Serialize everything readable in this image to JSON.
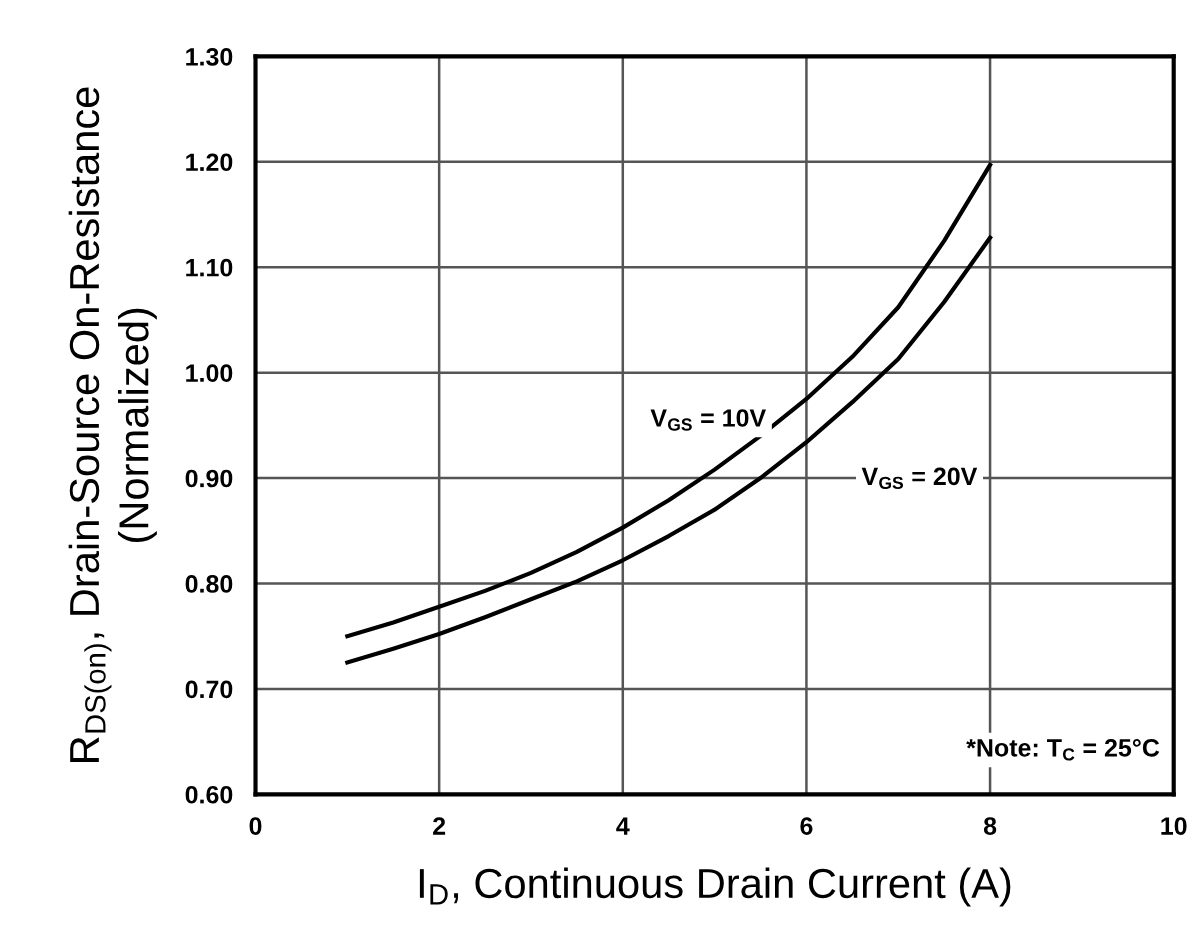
{
  "chart_data": {
    "type": "line",
    "xlabel": "I$_{D}$, Continuous Drain Current (A)",
    "ylabel": "R$_{DS(on)}$, Drain-Source On-Resistance\n(Normalized)",
    "x": [
      1,
      1.5,
      2,
      2.5,
      3,
      3.5,
      4,
      4.5,
      5,
      5.5,
      6,
      6.5,
      7,
      7.5,
      8
    ],
    "series": [
      {
        "color": "#000000",
        "values": [
          0.75,
          0.763,
          0.778,
          0.793,
          0.81,
          0.83,
          0.853,
          0.879,
          0.908,
          0.94,
          0.975,
          1.015,
          1.062,
          1.125,
          1.197
        ]
      },
      {
        "color": "#000000",
        "values": [
          0.725,
          0.738,
          0.752,
          0.768,
          0.785,
          0.802,
          0.822,
          0.845,
          0.87,
          0.9,
          0.934,
          0.972,
          1.013,
          1.067,
          1.128
        ]
      }
    ],
    "annotations": [
      "V$_{GS}$ = 10V",
      "V$_{GS}$ = 20V",
      "*Note: T$_{C}$ = 25°C"
    ],
    "xlim": [
      0,
      10
    ],
    "xticks": [
      0,
      2,
      4,
      6,
      8,
      10
    ],
    "ylim": [
      0.6,
      1.3
    ],
    "yticks": [
      {
        "value": 0.6,
        "label": "0.60"
      },
      {
        "value": 0.7,
        "label": "0.70"
      },
      {
        "value": 0.8,
        "label": "0.80"
      },
      {
        "value": 0.9,
        "label": "0.90"
      },
      {
        "value": 1.0,
        "label": "1.00"
      },
      {
        "value": 1.1,
        "label": "1.10"
      },
      {
        "value": 1.2,
        "label": "1.20"
      },
      {
        "value": 1.3,
        "label": "1.30"
      }
    ],
    "grid": true,
    "legend": false,
    "marker": "none",
    "line_style": "solid"
  }
}
